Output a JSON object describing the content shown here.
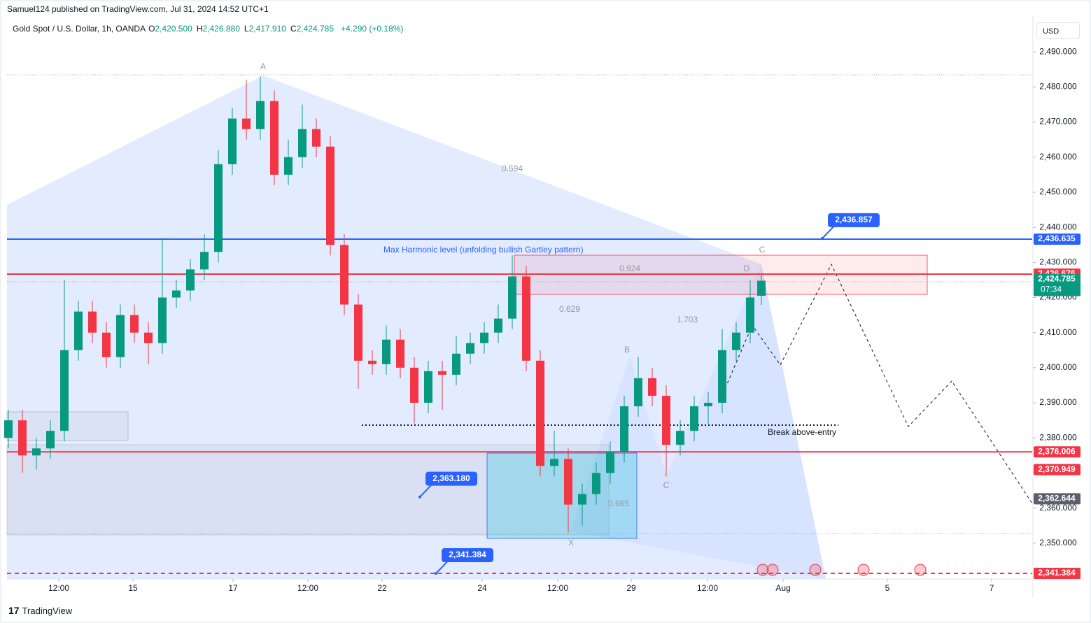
{
  "header": {
    "publisher": "Samuel124 published on TradingView.com, Jul 31, 2024 14:52 UTC+1",
    "symbol": "Gold Spot / U.S. Dollar, 1h, OANDA",
    "ohlc": [
      {
        "key": "O",
        "value": "2,420.500"
      },
      {
        "key": "H",
        "value": "2,426.880"
      },
      {
        "key": "L",
        "value": "2,417.910"
      },
      {
        "key": "C",
        "value": "2,424.785"
      }
    ],
    "change": "+4.290 (+0.18%)"
  },
  "currency": "USD",
  "brand": "TradingView",
  "chart_data": {
    "type": "candlestick",
    "x": [
      0,
      1,
      2,
      3,
      4,
      5,
      6,
      7,
      8,
      9,
      10,
      11,
      12,
      13,
      14,
      15,
      16,
      17,
      18,
      19,
      20,
      21,
      22,
      23,
      24,
      25,
      26,
      27,
      28,
      29,
      30,
      31,
      32,
      33,
      34,
      35,
      36,
      37,
      38,
      39,
      40,
      41,
      42,
      43,
      44,
      45,
      46,
      47,
      48,
      49,
      50,
      51,
      52,
      53,
      53.8
    ],
    "open": [
      2380,
      2385,
      2375,
      2377,
      2382,
      2405,
      2416,
      2410,
      2403,
      2415,
      2410,
      2407,
      2420,
      2422,
      2428,
      2433,
      2458,
      2471,
      2468,
      2476,
      2455,
      2460,
      2468,
      2463,
      2435,
      2418,
      2402,
      2401,
      2408,
      2400,
      2390,
      2399,
      2398,
      2404,
      2407,
      2410,
      2414,
      2426,
      2402,
      2372,
      2374,
      2361,
      2364,
      2370,
      2376,
      2389,
      2397,
      2392,
      2378,
      2382,
      2389,
      2390,
      2405,
      2410,
      2420.5
    ],
    "high": [
      2388,
      2388,
      2380,
      2385,
      2425,
      2419,
      2419,
      2413,
      2418,
      2418,
      2413,
      2437,
      2425,
      2431,
      2438,
      2462,
      2474,
      2482,
      2483,
      2479,
      2465,
      2475,
      2471,
      2466,
      2438,
      2421,
      2405,
      2412,
      2411,
      2403,
      2402,
      2402,
      2409,
      2410,
      2413,
      2418,
      2432,
      2429,
      2405,
      2382,
      2377,
      2367,
      2373,
      2379,
      2392,
      2403,
      2400,
      2395,
      2385,
      2392,
      2393,
      2411,
      2413,
      2425,
      2426.88
    ],
    "low": [
      2377,
      2370,
      2371,
      2374,
      2379,
      2402,
      2407,
      2400,
      2400,
      2407,
      2401,
      2404,
      2417,
      2419,
      2425,
      2430,
      2455,
      2465,
      2465,
      2452,
      2452,
      2457,
      2460,
      2432,
      2415,
      2394,
      2398,
      2398,
      2397,
      2384,
      2387,
      2388,
      2395,
      2401,
      2404,
      2407,
      2411,
      2399,
      2369,
      2369,
      2353,
      2355,
      2361,
      2367,
      2373,
      2386,
      2389,
      2369,
      2375,
      2379,
      2384,
      2387,
      2402,
      2407,
      2417.91
    ],
    "close": [
      2385,
      2375,
      2377,
      2382,
      2405,
      2416,
      2410,
      2403,
      2415,
      2410,
      2407,
      2420,
      2422,
      2428,
      2433,
      2458,
      2471,
      2468,
      2476,
      2455,
      2460,
      2468,
      2463,
      2435,
      2418,
      2402,
      2401,
      2408,
      2400,
      2390,
      2399,
      2398,
      2404,
      2407,
      2410,
      2414,
      2426,
      2402,
      2372,
      2374,
      2361,
      2364,
      2370,
      2376,
      2389,
      2397,
      2392,
      2378,
      2382,
      2389,
      2390,
      2405,
      2410,
      2420,
      2424.785
    ],
    "up_color": "#089981",
    "down_color": "#f23645",
    "xlim": [
      -0.1,
      73.15
    ],
    "ylim": [
      2339.8,
      2500.4
    ],
    "xticks": [
      {
        "value": 3.6,
        "label": "12:00"
      },
      {
        "value": 8.9,
        "label": "15"
      },
      {
        "value": 16.05,
        "label": "17"
      },
      {
        "value": 21.4,
        "label": "12:00"
      },
      {
        "value": 26.7,
        "label": "22"
      },
      {
        "value": 33.85,
        "label": "24"
      },
      {
        "value": 39.25,
        "label": "12:00"
      },
      {
        "value": 44.5,
        "label": "29"
      },
      {
        "value": 49.95,
        "label": "12:00"
      },
      {
        "value": 55.35,
        "label": "Aug"
      },
      {
        "value": 62.8,
        "label": "5"
      },
      {
        "value": 70.25,
        "label": "7"
      }
    ],
    "yticks": [
      {
        "value": 2490,
        "label": "2,490.000"
      },
      {
        "value": 2480,
        "label": "2,480.000"
      },
      {
        "value": 2470,
        "label": "2,470.000"
      },
      {
        "value": 2460,
        "label": "2,460.000"
      },
      {
        "value": 2450,
        "label": "2,450.000"
      },
      {
        "value": 2440,
        "label": "2,440.000"
      },
      {
        "value": 2430,
        "label": "2,430.000"
      },
      {
        "value": 2420,
        "label": "2,420.000"
      },
      {
        "value": 2410,
        "label": "2,410.000"
      },
      {
        "value": 2400,
        "label": "2,400.000"
      },
      {
        "value": 2390,
        "label": "2,390.000"
      },
      {
        "value": 2380,
        "label": "2,380.000"
      },
      {
        "value": 2370,
        "label": "2,370.000"
      },
      {
        "value": 2360,
        "label": "2,360.000"
      },
      {
        "value": 2350,
        "label": "2,350.000"
      }
    ],
    "levels": [
      {
        "value": 2436.635,
        "label": "2,436.635",
        "color": "#2962ff",
        "style": "solid"
      },
      {
        "value": 2426.676,
        "label": "2,426.676",
        "color": "#f23645",
        "style": "solid"
      },
      {
        "value": 2376.006,
        "label": "2,376.006",
        "color": "#f23645",
        "style": "solid"
      },
      {
        "value": 2370.949,
        "label": "2,370.949",
        "color": "#f23645",
        "style": "none"
      },
      {
        "value": 2362.644,
        "label": "2,362.644",
        "color": "#5d606b",
        "style": "none"
      },
      {
        "value": 2341.384,
        "label": "2,341.384",
        "color": "#f23645",
        "style": "dashed"
      }
    ],
    "callouts": [
      {
        "value": 2436.857,
        "label": "2,436.857"
      },
      {
        "value": 2363.18,
        "label": "2,363.180"
      },
      {
        "value": 2341.384,
        "label": "2,341.384"
      }
    ],
    "last_price": {
      "value": 2424.785,
      "label": "2,424.785",
      "countdown": "07:34",
      "color": "#089981"
    },
    "annotations": [
      "Max Harmonic level (unfolding bullish Gartley pattern)",
      "0.594",
      "0.924",
      "0.629",
      "1.703",
      "0.665",
      "Break above-entry",
      "A",
      "B",
      "C",
      "C",
      "D",
      "X"
    ]
  }
}
